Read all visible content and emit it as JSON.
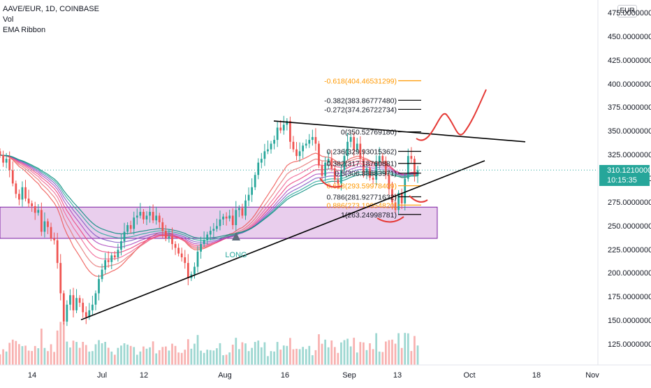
{
  "legend": {
    "symbol": "AAVE/EUR, 1D, COINBASE",
    "vol": "Vol",
    "ema": "EMA Ribbon"
  },
  "currency": "EUR",
  "current_price": {
    "price": "310.12100000",
    "countdown": "10:15:35"
  },
  "signal": {
    "label": "LONG"
  },
  "colors": {
    "up": "#26a69a",
    "down": "#ef5350",
    "zone_fill": "#e1bee7",
    "zone_border": "#7b1fa2",
    "fib_orange": "#ff9800",
    "trendline": "#000000",
    "annotation": "#e53935"
  },
  "chart_data": {
    "type": "candlestick",
    "title": "AAVE/EUR, 1D, COINBASE",
    "y_axis": {
      "ticks": [
        "475.00000000",
        "450.00000000",
        "425.00000000",
        "400.00000000",
        "375.00000000",
        "350.00000000",
        "325.00000000",
        "300.00000000",
        "275.00000000",
        "250.00000000",
        "225.00000000",
        "200.00000000",
        "175.00000000",
        "150.00000000",
        "125.00000000"
      ],
      "range": [
        110,
        485
      ]
    },
    "x_axis": {
      "ticks": [
        "14",
        "Jul",
        "12",
        "Aug",
        "16",
        "Sep",
        "13",
        "Oct",
        "18",
        "Nov"
      ]
    },
    "candles_close": [
      326,
      318,
      322,
      310,
      296,
      285,
      279,
      292,
      280,
      275,
      272,
      265,
      268,
      245,
      256,
      250,
      238,
      236,
      212,
      180,
      150,
      168,
      178,
      162,
      175,
      170,
      160,
      155,
      162,
      168,
      180,
      195,
      205,
      215,
      213,
      220,
      218,
      226,
      235,
      245,
      252,
      248,
      260,
      262,
      266,
      258,
      262,
      266,
      257,
      262,
      255,
      246,
      238,
      240,
      232,
      228,
      222,
      218,
      212,
      196,
      200,
      208,
      224,
      232,
      236,
      242,
      246,
      248,
      251,
      258,
      261,
      259,
      262,
      252,
      268,
      270,
      262,
      278,
      284,
      292,
      305,
      318,
      322,
      330,
      332,
      338,
      342,
      355,
      352,
      358,
      362,
      340,
      332,
      325,
      330,
      336,
      338,
      342,
      345,
      338,
      315,
      304,
      318,
      322,
      312,
      300,
      296,
      310,
      325,
      340,
      345,
      332,
      338,
      322,
      308,
      312,
      302,
      300,
      318,
      325,
      320,
      305,
      290,
      276,
      268,
      286,
      275,
      301,
      325,
      322,
      304,
      310
    ],
    "fib_levels": [
      {
        "label": "-0.618(404.46531299)",
        "value": 404.46531299
      },
      {
        "label": "-0.382(383.86777480)",
        "value": 383.8677748
      },
      {
        "label": "-0.272(374.26722734)",
        "value": 374.26722734
      },
      {
        "label": "0(350.52769180)",
        "value": 350.5276918
      },
      {
        "label": "0.236(329.93015362)",
        "value": 329.93015362
      },
      {
        "label": "0.382(317.18760881)",
        "value": 317.18760881
      },
      {
        "label": "0.5(306.88883971)",
        "value": 306.88883971
      },
      {
        "label": "0.618(293.59978409)",
        "value": 293.59978409
      },
      {
        "label": "0.786(281.92771632)",
        "value": 281.92771632
      },
      {
        "label": "0.886(273.19954820)",
        "value": 273.1995482
      },
      {
        "label": "1(263.24998781)",
        "value": 263.24998781
      }
    ],
    "zone": {
      "from": 238,
      "to": 271
    },
    "grid": false,
    "legend_position": "top-left"
  }
}
